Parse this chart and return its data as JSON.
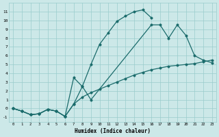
{
  "bg_color": "#cce8e8",
  "line_color": "#1a6b6b",
  "grid_color": "#99cccc",
  "xlabel": "Humidex (Indice chaleur)",
  "hours": [
    0,
    1,
    2,
    3,
    4,
    5,
    6,
    7,
    8,
    9,
    10,
    11,
    12,
    13,
    14,
    15,
    16,
    17,
    18,
    19,
    20,
    21,
    22,
    23
  ],
  "curve_top": [
    0.0,
    -0.3,
    -0.7,
    -0.6,
    -0.1,
    -0.3,
    -0.9,
    0.5,
    2.5,
    5.0,
    7.3,
    8.6,
    9.9,
    10.5,
    11.0,
    11.2,
    10.3,
    9.5,
    null,
    null,
    null,
    null,
    null,
    null
  ],
  "curve_mid": [
    0.0,
    -0.3,
    -0.7,
    -0.6,
    -0.1,
    -0.3,
    -0.9,
    3.5,
    2.5,
    1.0,
    null,
    null,
    null,
    null,
    null,
    null,
    9.5,
    9.5,
    8.0,
    9.5,
    8.3,
    6.0,
    5.5,
    5.2
  ],
  "curve_bot": [
    0.0,
    -0.3,
    -0.7,
    -0.6,
    -0.1,
    -0.3,
    -0.9,
    0.5,
    1.3,
    1.8,
    2.2,
    2.6,
    3.0,
    3.4,
    3.8,
    4.1,
    4.4,
    4.6,
    4.8,
    4.9,
    5.0,
    5.1,
    5.3,
    5.5
  ],
  "xlim": [
    -0.5,
    23.5
  ],
  "ylim": [
    -1.5,
    12.0
  ],
  "yticks": [
    -1,
    0,
    1,
    2,
    3,
    4,
    5,
    6,
    7,
    8,
    9,
    10,
    11
  ],
  "xticks": [
    0,
    1,
    2,
    3,
    4,
    5,
    6,
    7,
    8,
    9,
    10,
    11,
    12,
    13,
    14,
    15,
    16,
    17,
    18,
    19,
    20,
    21,
    22,
    23
  ]
}
